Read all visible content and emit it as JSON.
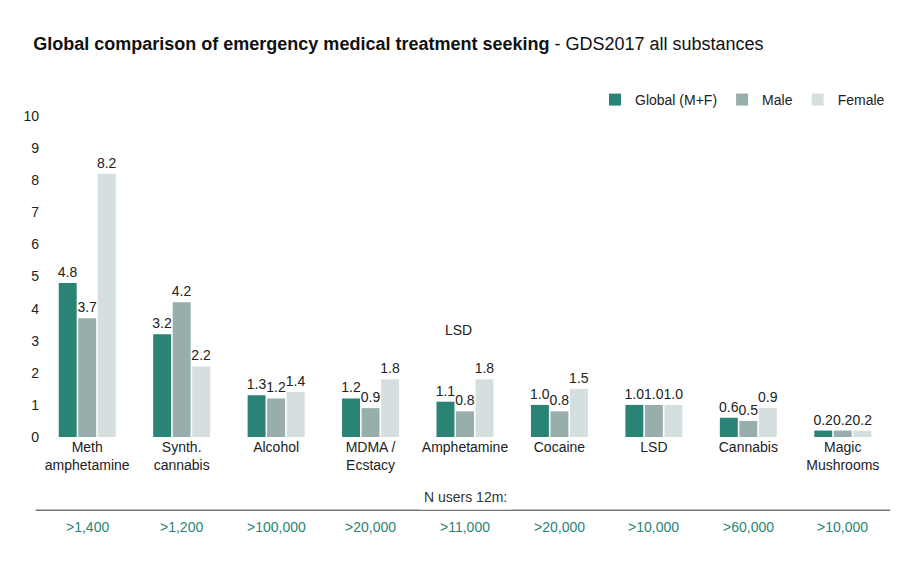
{
  "chart_data": {
    "type": "bar",
    "title": "Global comparison of emergency medical treatment seeking",
    "subtitle": "- GDS2017 all substances",
    "categories": [
      "Meth\namphetamine",
      "Synth.\ncannabis",
      "Alcohol",
      "MDMA /\nEcstacy",
      "Amphetamine",
      "Cocaine",
      "LSD",
      "Cannabis",
      "Magic\nMushrooms"
    ],
    "series": [
      {
        "name": "Global (M+F)",
        "color": "#2a8476",
        "values": [
          4.8,
          3.2,
          1.3,
          1.2,
          1.1,
          1.0,
          1.0,
          0.6,
          0.2
        ],
        "value_labels": [
          "4.8",
          "3.2",
          "1.3",
          "1.2",
          "1.1",
          "1.0",
          "1.0",
          "0.6",
          "0.2"
        ]
      },
      {
        "name": "Male",
        "color": "#98aeac",
        "values": [
          3.7,
          4.2,
          1.2,
          0.9,
          0.8,
          0.8,
          1.0,
          0.5,
          0.2
        ],
        "value_labels": [
          "3.7",
          "4.2",
          "1.2",
          "0.9",
          "0.8",
          "0.8",
          "1.0",
          "0.5",
          "0.2"
        ]
      },
      {
        "name": "Female",
        "color": "#d5dfe0",
        "values": [
          8.2,
          2.2,
          1.4,
          1.8,
          1.8,
          1.5,
          1.0,
          0.9,
          0.2
        ],
        "value_labels": [
          "8.2",
          "2.2",
          "1.4",
          "1.8",
          "1.8",
          "1.5",
          "1.0",
          "0.9",
          "0.2"
        ]
      }
    ],
    "annotations": [
      "LSD"
    ],
    "footer": {
      "title": "N users 12m:",
      "values": [
        ">1,400",
        ">1,200",
        ">100,000",
        ">20,000",
        ">11,000",
        ">20,000",
        ">10,000",
        ">60,000",
        ">10,000"
      ]
    },
    "ylim": [
      0,
      10
    ],
    "yticks": [
      0,
      1,
      2,
      3,
      4,
      5,
      6,
      7,
      8,
      9,
      10
    ],
    "grid": false,
    "legend": "top right",
    "data_labels": true
  }
}
